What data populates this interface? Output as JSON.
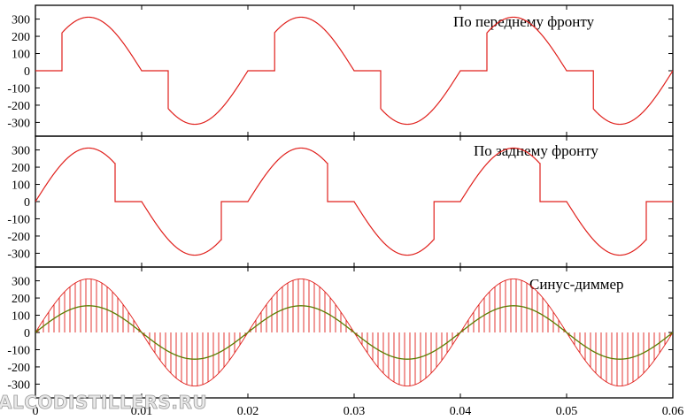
{
  "watermark": "ALCODISTILLERS.RU",
  "colors": {
    "signal": "#e0201c",
    "envelope": "#5a7d00",
    "axis": "#000000"
  },
  "chart_data": [
    {
      "type": "line",
      "title": "По переднему фронту",
      "xlim": [
        0,
        0.06
      ],
      "ylim": [
        -380,
        380
      ],
      "yticks": [
        -300,
        -200,
        -100,
        0,
        100,
        200,
        300
      ],
      "x_tick_labels": [],
      "amplitude": 311,
      "frequency_hz": 50,
      "mode": "leading-edge",
      "firing_delay_s": 0.0025,
      "series": [
        {
          "color": "#e0201c"
        }
      ]
    },
    {
      "type": "line",
      "title": "По заднему фронту",
      "xlim": [
        0,
        0.06
      ],
      "ylim": [
        -380,
        380
      ],
      "yticks": [
        -300,
        -200,
        -100,
        0,
        100,
        200,
        300
      ],
      "x_tick_labels": [],
      "amplitude": 311,
      "frequency_hz": 50,
      "mode": "trailing-edge",
      "cutoff_s": 0.0075,
      "series": [
        {
          "color": "#e0201c"
        }
      ]
    },
    {
      "type": "line",
      "title": "Синус-диммер",
      "xlim": [
        0,
        0.06
      ],
      "ylim": [
        -380,
        380
      ],
      "yticks": [
        -300,
        -200,
        -100,
        0,
        100,
        200,
        300
      ],
      "xticks": [
        0,
        0.01,
        0.02,
        0.03,
        0.04,
        0.05,
        0.06
      ],
      "x_tick_labels": [
        "0",
        "0.01",
        "0.02",
        "0.03",
        "0.04",
        "0.05",
        "0.06"
      ],
      "amplitude": 311,
      "frequency_hz": 50,
      "mode": "pwm-chopped",
      "pwm_period_s": 0.0005,
      "envelope_amplitude": 155,
      "series": [
        {
          "color": "#e0201c"
        },
        {
          "color": "#5a7d00"
        }
      ]
    }
  ]
}
